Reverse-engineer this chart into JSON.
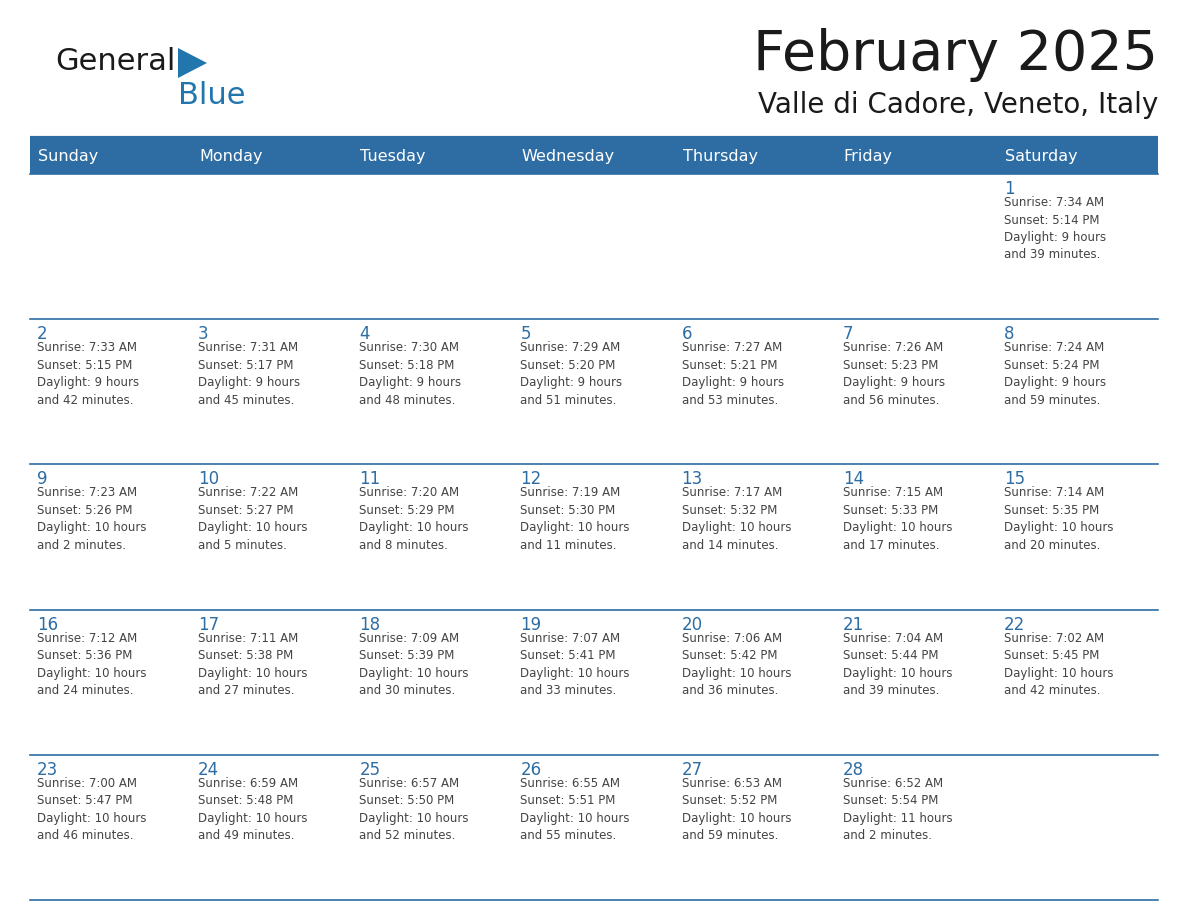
{
  "title": "February 2025",
  "subtitle": "Valle di Cadore, Veneto, Italy",
  "header_bg": "#2E6DA4",
  "header_text": "#FFFFFF",
  "cell_bg": "#FFFFFF",
  "divider_color": "#2E6DA4",
  "text_color": "#444444",
  "day_number_color": "#2E6DA4",
  "header_days": [
    "Sunday",
    "Monday",
    "Tuesday",
    "Wednesday",
    "Thursday",
    "Friday",
    "Saturday"
  ],
  "weeks": [
    [
      {
        "day": "",
        "info": ""
      },
      {
        "day": "",
        "info": ""
      },
      {
        "day": "",
        "info": ""
      },
      {
        "day": "",
        "info": ""
      },
      {
        "day": "",
        "info": ""
      },
      {
        "day": "",
        "info": ""
      },
      {
        "day": "1",
        "info": "Sunrise: 7:34 AM\nSunset: 5:14 PM\nDaylight: 9 hours\nand 39 minutes."
      }
    ],
    [
      {
        "day": "2",
        "info": "Sunrise: 7:33 AM\nSunset: 5:15 PM\nDaylight: 9 hours\nand 42 minutes."
      },
      {
        "day": "3",
        "info": "Sunrise: 7:31 AM\nSunset: 5:17 PM\nDaylight: 9 hours\nand 45 minutes."
      },
      {
        "day": "4",
        "info": "Sunrise: 7:30 AM\nSunset: 5:18 PM\nDaylight: 9 hours\nand 48 minutes."
      },
      {
        "day": "5",
        "info": "Sunrise: 7:29 AM\nSunset: 5:20 PM\nDaylight: 9 hours\nand 51 minutes."
      },
      {
        "day": "6",
        "info": "Sunrise: 7:27 AM\nSunset: 5:21 PM\nDaylight: 9 hours\nand 53 minutes."
      },
      {
        "day": "7",
        "info": "Sunrise: 7:26 AM\nSunset: 5:23 PM\nDaylight: 9 hours\nand 56 minutes."
      },
      {
        "day": "8",
        "info": "Sunrise: 7:24 AM\nSunset: 5:24 PM\nDaylight: 9 hours\nand 59 minutes."
      }
    ],
    [
      {
        "day": "9",
        "info": "Sunrise: 7:23 AM\nSunset: 5:26 PM\nDaylight: 10 hours\nand 2 minutes."
      },
      {
        "day": "10",
        "info": "Sunrise: 7:22 AM\nSunset: 5:27 PM\nDaylight: 10 hours\nand 5 minutes."
      },
      {
        "day": "11",
        "info": "Sunrise: 7:20 AM\nSunset: 5:29 PM\nDaylight: 10 hours\nand 8 minutes."
      },
      {
        "day": "12",
        "info": "Sunrise: 7:19 AM\nSunset: 5:30 PM\nDaylight: 10 hours\nand 11 minutes."
      },
      {
        "day": "13",
        "info": "Sunrise: 7:17 AM\nSunset: 5:32 PM\nDaylight: 10 hours\nand 14 minutes."
      },
      {
        "day": "14",
        "info": "Sunrise: 7:15 AM\nSunset: 5:33 PM\nDaylight: 10 hours\nand 17 minutes."
      },
      {
        "day": "15",
        "info": "Sunrise: 7:14 AM\nSunset: 5:35 PM\nDaylight: 10 hours\nand 20 minutes."
      }
    ],
    [
      {
        "day": "16",
        "info": "Sunrise: 7:12 AM\nSunset: 5:36 PM\nDaylight: 10 hours\nand 24 minutes."
      },
      {
        "day": "17",
        "info": "Sunrise: 7:11 AM\nSunset: 5:38 PM\nDaylight: 10 hours\nand 27 minutes."
      },
      {
        "day": "18",
        "info": "Sunrise: 7:09 AM\nSunset: 5:39 PM\nDaylight: 10 hours\nand 30 minutes."
      },
      {
        "day": "19",
        "info": "Sunrise: 7:07 AM\nSunset: 5:41 PM\nDaylight: 10 hours\nand 33 minutes."
      },
      {
        "day": "20",
        "info": "Sunrise: 7:06 AM\nSunset: 5:42 PM\nDaylight: 10 hours\nand 36 minutes."
      },
      {
        "day": "21",
        "info": "Sunrise: 7:04 AM\nSunset: 5:44 PM\nDaylight: 10 hours\nand 39 minutes."
      },
      {
        "day": "22",
        "info": "Sunrise: 7:02 AM\nSunset: 5:45 PM\nDaylight: 10 hours\nand 42 minutes."
      }
    ],
    [
      {
        "day": "23",
        "info": "Sunrise: 7:00 AM\nSunset: 5:47 PM\nDaylight: 10 hours\nand 46 minutes."
      },
      {
        "day": "24",
        "info": "Sunrise: 6:59 AM\nSunset: 5:48 PM\nDaylight: 10 hours\nand 49 minutes."
      },
      {
        "day": "25",
        "info": "Sunrise: 6:57 AM\nSunset: 5:50 PM\nDaylight: 10 hours\nand 52 minutes."
      },
      {
        "day": "26",
        "info": "Sunrise: 6:55 AM\nSunset: 5:51 PM\nDaylight: 10 hours\nand 55 minutes."
      },
      {
        "day": "27",
        "info": "Sunrise: 6:53 AM\nSunset: 5:52 PM\nDaylight: 10 hours\nand 59 minutes."
      },
      {
        "day": "28",
        "info": "Sunrise: 6:52 AM\nSunset: 5:54 PM\nDaylight: 11 hours\nand 2 minutes."
      },
      {
        "day": "",
        "info": ""
      }
    ]
  ],
  "logo_text_general": "General",
  "logo_text_blue": "Blue",
  "logo_color_general": "#1a1a1a",
  "logo_color_blue": "#2176AE",
  "logo_triangle_color": "#2176AE",
  "title_color": "#1a1a1a",
  "subtitle_color": "#1a1a1a"
}
